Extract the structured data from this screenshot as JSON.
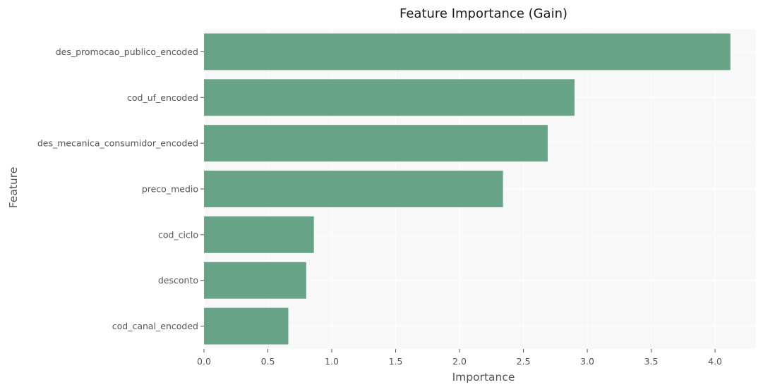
{
  "chart_data": {
    "type": "bar",
    "orientation": "horizontal",
    "title": "Feature Importance (Gain)",
    "xlabel": "Importance",
    "ylabel": "Feature",
    "categories": [
      "des_promocao_publico_encoded",
      "cod_uf_encoded",
      "des_mecanica_consumidor_encoded",
      "preco_medio",
      "cod_ciclo",
      "desconto",
      "cod_canal_encoded"
    ],
    "values": [
      4.12,
      2.9,
      2.69,
      2.34,
      0.86,
      0.8,
      0.66
    ],
    "xlim": [
      0,
      4.32
    ],
    "xticks": [
      0.0,
      0.5,
      1.0,
      1.5,
      2.0,
      2.5,
      3.0,
      3.5,
      4.0
    ],
    "xtick_labels": [
      "0.0",
      "0.5",
      "1.0",
      "1.5",
      "2.0",
      "2.5",
      "3.0",
      "3.5",
      "4.0"
    ],
    "grid": true,
    "bar_color": "#67a386",
    "background_color": "#f8f8f8"
  }
}
